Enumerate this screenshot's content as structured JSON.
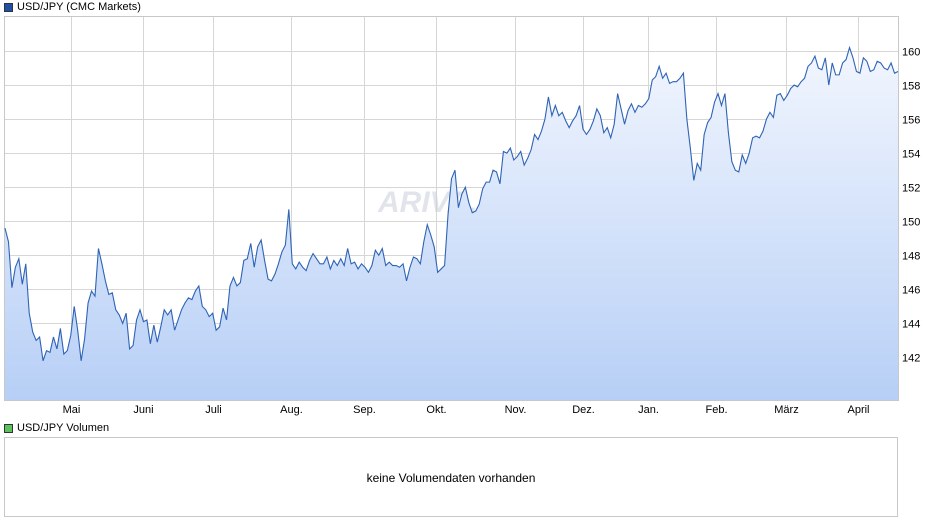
{
  "chart_data": {
    "type": "area",
    "legend": "USD/JPY (CMC Markets)",
    "y_ticks": [
      142,
      144,
      146,
      148,
      150,
      152,
      154,
      156,
      158,
      160
    ],
    "ylim": [
      139.5,
      162
    ],
    "x_ticks": [
      "Mai",
      "Juni",
      "Juli",
      "Aug.",
      "Sep.",
      "Okt.",
      "Nov.",
      "Dez.",
      "Jan.",
      "Feb.",
      "März",
      "April"
    ],
    "values": [
      149.6,
      148.8,
      146.1,
      147.3,
      147.8,
      146.3,
      147.5,
      144.6,
      143.5,
      143.0,
      143.2,
      141.8,
      142.4,
      142.3,
      143.2,
      142.5,
      143.7,
      142.2,
      142.4,
      143.3,
      145.0,
      143.6,
      141.8,
      143.1,
      145.2,
      145.9,
      145.6,
      148.4,
      147.5,
      146.5,
      145.7,
      145.8,
      144.8,
      144.5,
      144.0,
      144.6,
      142.5,
      142.7,
      144.2,
      144.8,
      144.1,
      144.2,
      142.8,
      143.9,
      142.9,
      143.8,
      144.8,
      144.5,
      144.8,
      143.6,
      144.2,
      144.8,
      145.2,
      145.5,
      145.4,
      145.9,
      146.2,
      145.0,
      144.8,
      144.4,
      144.6,
      143.6,
      143.8,
      144.9,
      144.2,
      146.2,
      146.7,
      146.2,
      146.4,
      147.7,
      147.8,
      148.7,
      147.3,
      148.5,
      148.9,
      147.7,
      146.6,
      146.5,
      146.9,
      147.5,
      148.2,
      148.6,
      150.7,
      147.5,
      147.2,
      147.6,
      147.3,
      147.1,
      147.7,
      148.1,
      147.8,
      147.5,
      147.5,
      147.9,
      147.2,
      147.7,
      147.4,
      147.8,
      147.4,
      148.4,
      147.5,
      147.6,
      147.2,
      147.5,
      147.3,
      147.0,
      147.4,
      148.3,
      148.0,
      148.4,
      147.4,
      147.6,
      147.4,
      147.4,
      147.3,
      147.5,
      146.5,
      147.3,
      147.9,
      147.8,
      147.5,
      148.8,
      149.8,
      149.2,
      148.5,
      147.0,
      147.2,
      147.4,
      150.4,
      152.5,
      153.0,
      150.8,
      151.6,
      152.0,
      151.1,
      150.5,
      150.6,
      151.0,
      151.9,
      152.3,
      152.3,
      153.0,
      152.9,
      152.2,
      154.1,
      154.0,
      154.3,
      153.6,
      153.8,
      154.1,
      153.3,
      153.7,
      154.2,
      155.1,
      154.8,
      155.3,
      156.0,
      157.3,
      156.2,
      156.8,
      156.2,
      156.4,
      155.9,
      155.5,
      155.9,
      156.2,
      156.8,
      155.4,
      155.1,
      155.4,
      155.9,
      156.6,
      156.2,
      155.2,
      155.5,
      154.9,
      155.7,
      157.5,
      156.6,
      155.7,
      156.5,
      156.9,
      156.4,
      156.8,
      156.7,
      156.9,
      157.2,
      158.3,
      158.5,
      159.1,
      158.4,
      158.7,
      158.1,
      158.2,
      158.2,
      158.4,
      158.7,
      156.0,
      154.3,
      152.4,
      153.4,
      153.0,
      155.1,
      155.8,
      156.1,
      157.0,
      157.5,
      156.8,
      157.5,
      155.2,
      153.5,
      153.0,
      152.9,
      153.9,
      153.4,
      154.0,
      154.9,
      155.0,
      154.9,
      155.3,
      156.0,
      156.4,
      156.1,
      157.4,
      157.5,
      157.1,
      157.4,
      157.8,
      158.0,
      157.9,
      158.2,
      158.4,
      159.1,
      159.3,
      159.7,
      159.0,
      158.9,
      159.6,
      158.0,
      159.3,
      158.6,
      158.6,
      159.3,
      159.5,
      160.2,
      159.6,
      158.8,
      158.7,
      159.6,
      159.4,
      158.8,
      158.9,
      159.4,
      159.3,
      159.0,
      158.9,
      159.3,
      158.7,
      158.8
    ]
  },
  "watermark": "ARIVA.DE",
  "volume_panel": {
    "legend": "USD/JPY Volumen",
    "message": "keine Volumendaten vorhanden"
  },
  "colors": {
    "line": "#2e63b5",
    "fill_top": "#f0f4fd",
    "fill_bottom": "#b7cff6",
    "grid": "#d6d6d6",
    "price_swatch": "#1f4fa8",
    "volume_swatch": "#5cc25c"
  }
}
